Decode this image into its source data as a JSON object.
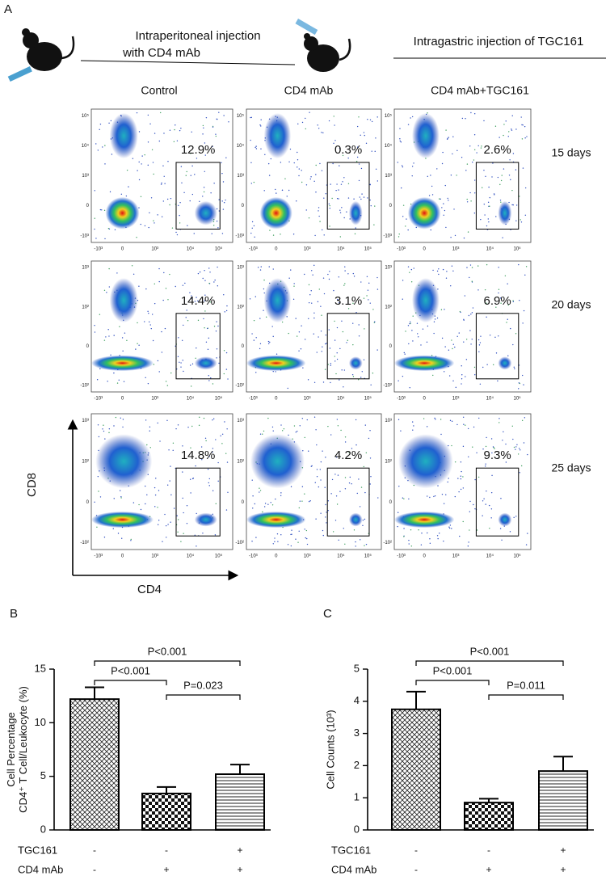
{
  "panel_labels": [
    "A",
    "B",
    "C"
  ],
  "panel_a": {
    "injection_1": [
      "Intraperitoneal injection",
      "with CD4 mAb"
    ],
    "injection_2": "Intragastric injection of TGC161",
    "columns": [
      "Control",
      "CD4 mAb",
      "CD4 mAb+TGC161"
    ],
    "rows": [
      "15 days",
      "20 days",
      "25 days"
    ],
    "percentages": [
      [
        "12.9%",
        "0.3%",
        "2.6%"
      ],
      [
        "14.4%",
        "3.1%",
        "6.9%"
      ],
      [
        "14.8%",
        "4.2%",
        "9.3%"
      ]
    ],
    "x_axis_label": "CD4",
    "y_axis_label": "CD8",
    "flow_xticks": [
      "-10³",
      "0",
      "10³",
      "10⁴",
      "10⁵"
    ],
    "flow_yticks": [
      [
        "-10³",
        "0",
        "10³",
        "10⁴",
        "10⁵"
      ],
      [
        "-10²",
        "0",
        "10²",
        "10³"
      ],
      [
        "-10²",
        "0",
        "10²",
        "10³"
      ]
    ]
  },
  "chart_data": [
    {
      "type": "bar",
      "y_label": [
        "Cell Percentage",
        "CD4⁺ T Cell/Leukocyte (%)"
      ],
      "values": [
        12.2,
        3.4,
        5.2
      ],
      "errors": [
        1.1,
        0.6,
        0.9
      ],
      "ylim": [
        0,
        15
      ],
      "yticks": [
        0,
        5,
        10,
        15
      ],
      "comparisons": [
        "P<0.001",
        "P<0.001",
        "P=0.023"
      ],
      "treatments": [
        {
          "name": "TGC161",
          "signs": [
            "-",
            "-",
            "+"
          ]
        },
        {
          "name": "CD4 mAb",
          "signs": [
            "-",
            "+",
            "+"
          ]
        }
      ]
    },
    {
      "type": "bar",
      "y_label": [
        "Cell Counts (10³)"
      ],
      "values": [
        3.75,
        0.85,
        1.83
      ],
      "errors": [
        0.55,
        0.12,
        0.45
      ],
      "ylim": [
        0,
        5
      ],
      "yticks": [
        0,
        1,
        2,
        3,
        4,
        5
      ],
      "comparisons": [
        "P<0.001",
        "P<0.001",
        "P=0.011"
      ],
      "treatments": [
        {
          "name": "TGC161",
          "signs": [
            "-",
            "-",
            "+"
          ]
        },
        {
          "name": "CD4 mAb",
          "signs": [
            "-",
            "+",
            "+"
          ]
        }
      ]
    }
  ]
}
